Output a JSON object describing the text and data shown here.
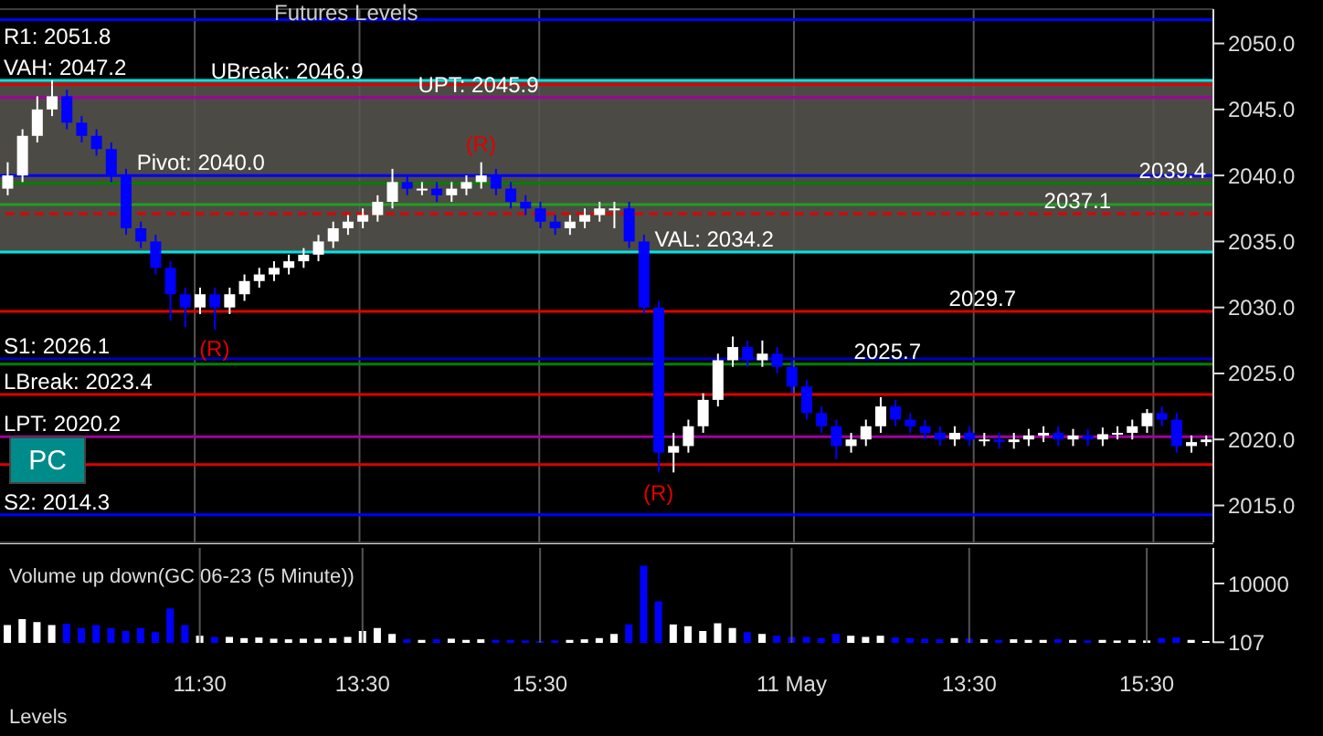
{
  "chart_data": [
    {
      "type": "candlestick",
      "title": "Futures Levels",
      "ohlc": [
        [
          2039,
          2041,
          2038.5,
          2040
        ],
        [
          2040,
          2043.5,
          2039.5,
          2043
        ],
        [
          2043,
          2046,
          2042.5,
          2045
        ],
        [
          2045,
          2047.2,
          2044.5,
          2046
        ],
        [
          2046,
          2046.5,
          2043.5,
          2044
        ],
        [
          2044,
          2044.5,
          2042.5,
          2043
        ],
        [
          2043,
          2043.5,
          2041.5,
          2042
        ],
        [
          2042,
          2042.5,
          2039.5,
          2040
        ],
        [
          2040,
          2040.5,
          2035.5,
          2036
        ],
        [
          2036,
          2036.5,
          2034.5,
          2035
        ],
        [
          2035,
          2035.5,
          2032.5,
          2033
        ],
        [
          2033,
          2033.5,
          2029,
          2031
        ],
        [
          2031,
          2031.5,
          2028.5,
          2030
        ],
        [
          2030,
          2031.5,
          2029.5,
          2031
        ],
        [
          2031,
          2031.5,
          2028.3,
          2030
        ],
        [
          2030,
          2031.5,
          2029.5,
          2031
        ],
        [
          2031,
          2032.5,
          2030.5,
          2032
        ],
        [
          2032,
          2033,
          2031.5,
          2032.5
        ],
        [
          2032.5,
          2033.5,
          2032,
          2033
        ],
        [
          2033,
          2034,
          2032.5,
          2033.5
        ],
        [
          2033.5,
          2034.5,
          2033,
          2034
        ],
        [
          2034,
          2035.5,
          2033.5,
          2035
        ],
        [
          2035,
          2036.5,
          2034.5,
          2036
        ],
        [
          2036,
          2037,
          2035.5,
          2036.5
        ],
        [
          2036.5,
          2037.5,
          2036,
          2037
        ],
        [
          2037,
          2038.5,
          2036.5,
          2038
        ],
        [
          2038,
          2040.5,
          2037.5,
          2039.5
        ],
        [
          2039.5,
          2040,
          2038.5,
          2039
        ],
        [
          2039,
          2039.5,
          2038.5,
          2039
        ],
        [
          2039,
          2039.5,
          2038,
          2038.5
        ],
        [
          2038.5,
          2039.5,
          2038,
          2039
        ],
        [
          2039,
          2040,
          2038.5,
          2039.5
        ],
        [
          2039.5,
          2041,
          2039,
          2040
        ],
        [
          2040,
          2040.5,
          2038.5,
          2039
        ],
        [
          2039,
          2039.5,
          2037.5,
          2038
        ],
        [
          2038,
          2038.5,
          2037,
          2037.5
        ],
        [
          2037.5,
          2038,
          2036,
          2036.5
        ],
        [
          2036.5,
          2037,
          2035.5,
          2036
        ],
        [
          2036,
          2037,
          2035.5,
          2036.5
        ],
        [
          2036.5,
          2037.5,
          2036,
          2037
        ],
        [
          2037,
          2038,
          2036.5,
          2037.5
        ],
        [
          2037.5,
          2038,
          2036,
          2037.5
        ],
        [
          2037.5,
          2038,
          2034.5,
          2035
        ],
        [
          2035,
          2035.5,
          2029.5,
          2030
        ],
        [
          2030,
          2030.5,
          2017.5,
          2019
        ],
        [
          2019,
          2020.5,
          2017.5,
          2019.5
        ],
        [
          2019.5,
          2021.5,
          2019,
          2021
        ],
        [
          2021,
          2023.5,
          2020.5,
          2023
        ],
        [
          2023,
          2026.5,
          2022.5,
          2026
        ],
        [
          2026,
          2027.8,
          2025.5,
          2027
        ],
        [
          2027,
          2027.5,
          2025.5,
          2026
        ],
        [
          2026,
          2027.5,
          2025.5,
          2026.5
        ],
        [
          2026.5,
          2027,
          2025,
          2025.5
        ],
        [
          2025.5,
          2026,
          2023.5,
          2024
        ],
        [
          2024,
          2024.5,
          2021.5,
          2022
        ],
        [
          2022,
          2022.5,
          2020.5,
          2021
        ],
        [
          2021,
          2021.5,
          2018.5,
          2019.5
        ],
        [
          2019.5,
          2020.5,
          2019,
          2020
        ],
        [
          2020,
          2021.5,
          2019.5,
          2021
        ],
        [
          2021,
          2023.2,
          2020.5,
          2022.5
        ],
        [
          2022.5,
          2023,
          2021,
          2021.5
        ],
        [
          2021.5,
          2022,
          2020.5,
          2021
        ],
        [
          2021,
          2021.5,
          2020,
          2020.5
        ],
        [
          2020.5,
          2021,
          2019.5,
          2020
        ],
        [
          2020,
          2021,
          2019.5,
          2020.5
        ],
        [
          2020.5,
          2021,
          2019.5,
          2020
        ],
        [
          2020,
          2020.5,
          2019.5,
          2020
        ],
        [
          2020,
          2020.5,
          2019.3,
          2019.8
        ],
        [
          2019.8,
          2020.5,
          2019.3,
          2020
        ],
        [
          2020,
          2020.8,
          2019.5,
          2020.3
        ],
        [
          2020.3,
          2021,
          2019.8,
          2020.5
        ],
        [
          2020.5,
          2021,
          2019.5,
          2020
        ],
        [
          2020,
          2020.8,
          2019.5,
          2020.3
        ],
        [
          2020.3,
          2020.8,
          2019.5,
          2020
        ],
        [
          2020,
          2020.9,
          2019.5,
          2020.4
        ],
        [
          2020.4,
          2021,
          2020,
          2020.5
        ],
        [
          2020.5,
          2021.5,
          2020,
          2021
        ],
        [
          2021,
          2022.3,
          2020.5,
          2022
        ],
        [
          2022,
          2022.5,
          2021,
          2021.5
        ],
        [
          2021.5,
          2022,
          2019,
          2019.5
        ],
        [
          2019.5,
          2020.3,
          2019,
          2019.8
        ],
        [
          2019.8,
          2020.3,
          2019.5,
          2020
        ]
      ],
      "colors": [
        "#ffffff",
        "#ffffff",
        "#ffffff",
        "#ffffff",
        "#0000ff",
        "#0000ff",
        "#0000ff",
        "#0000ff",
        "#0000ff",
        "#0000ff",
        "#0000ff",
        "#0000ff",
        "#0000ff",
        "#ffffff",
        "#0000ff",
        "#ffffff",
        "#ffffff",
        "#ffffff",
        "#ffffff",
        "#ffffff",
        "#ffffff",
        "#ffffff",
        "#ffffff",
        "#ffffff",
        "#ffffff",
        "#ffffff",
        "#ffffff",
        "#0000ff",
        "#ffffff",
        "#0000ff",
        "#ffffff",
        "#ffffff",
        "#ffffff",
        "#0000ff",
        "#0000ff",
        "#0000ff",
        "#0000ff",
        "#0000ff",
        "#ffffff",
        "#ffffff",
        "#ffffff",
        "#ffffff",
        "#0000ff",
        "#0000ff",
        "#0000ff",
        "#ffffff",
        "#ffffff",
        "#ffffff",
        "#ffffff",
        "#ffffff",
        "#0000ff",
        "#ffffff",
        "#0000ff",
        "#0000ff",
        "#0000ff",
        "#0000ff",
        "#0000ff",
        "#ffffff",
        "#ffffff",
        "#ffffff",
        "#0000ff",
        "#0000ff",
        "#0000ff",
        "#0000ff",
        "#ffffff",
        "#0000ff",
        "#ffffff",
        "#0000ff",
        "#ffffff",
        "#ffffff",
        "#ffffff",
        "#0000ff",
        "#ffffff",
        "#0000ff",
        "#ffffff",
        "#ffffff",
        "#ffffff",
        "#ffffff",
        "#0000ff",
        "#0000ff",
        "#ffffff",
        "#ffffff"
      ],
      "ylim": [
        2012.2,
        2052.6
      ],
      "yticks": [
        {
          "value": 2015,
          "label": "2015.0"
        },
        {
          "value": 2020,
          "label": "2020.0"
        },
        {
          "value": 2025,
          "label": "2025.0"
        },
        {
          "value": 2030,
          "label": "2030.0"
        },
        {
          "value": 2035,
          "label": "2035.0"
        },
        {
          "value": 2040,
          "label": "2040.0"
        },
        {
          "value": 2045,
          "label": "2045.0"
        },
        {
          "value": 2050,
          "label": "2050.0"
        }
      ],
      "grid": true,
      "tick_labels": "y",
      "bands": [
        {
          "axis": "y",
          "from": 2034.2,
          "to": 2047.2,
          "color": "#4c4a44"
        }
      ],
      "ref_lines": [
        {
          "axis": "y",
          "value": 2051.8,
          "label": "R1: 2051.8",
          "color": "#0000ff"
        },
        {
          "axis": "y",
          "value": 2047.2,
          "label": "VAH: 2047.2",
          "color": "#00e5e5"
        },
        {
          "axis": "y",
          "value": 2046.9,
          "label": "UBreak: 2046.9",
          "color": "#e00000"
        },
        {
          "axis": "y",
          "value": 2045.9,
          "label": "UPT: 2045.9",
          "color": "#a000a0"
        },
        {
          "axis": "y",
          "value": 2040.0,
          "label": "Pivot: 2040.0",
          "color": "#0000ff"
        },
        {
          "axis": "y",
          "value": 2039.4,
          "label": "2039.4",
          "color": "#008000"
        },
        {
          "axis": "y",
          "value": 2037.8,
          "color": "#20a020"
        },
        {
          "axis": "y",
          "value": 2037.1,
          "label": "2037.1",
          "color": "#e00000",
          "line_style": "dashed"
        },
        {
          "axis": "y",
          "value": 2034.2,
          "label": "VAL: 2034.2",
          "color": "#00e5e5"
        },
        {
          "axis": "y",
          "value": 2029.7,
          "label": "2029.7",
          "color": "#e00000"
        },
        {
          "axis": "y",
          "value": 2026.1,
          "label": "S1: 2026.1",
          "color": "#0000c0"
        },
        {
          "axis": "y",
          "value": 2025.7,
          "label": "2025.7",
          "color": "#008000"
        },
        {
          "axis": "y",
          "value": 2023.4,
          "label": "LBreak: 2023.4",
          "color": "#e00000"
        },
        {
          "axis": "y",
          "value": 2020.2,
          "label": "LPT: 2020.2",
          "color": "#a000a0"
        },
        {
          "axis": "y",
          "value": 2018.1,
          "color": "#e00000"
        },
        {
          "axis": "y",
          "value": 2014.3,
          "label": "S2: 2014.3",
          "color": "#0000ff"
        }
      ],
      "annotations": [
        "(R)",
        "(R)",
        "(R)",
        "PC"
      ]
    },
    {
      "type": "bar",
      "title": "Volume up down(GC 06-23 (5 Minute))",
      "categories": [
        null,
        null,
        null,
        null,
        null,
        null,
        null,
        null,
        null,
        null,
        null,
        null,
        null,
        "11:30",
        null,
        null,
        null,
        null,
        null,
        null,
        null,
        null,
        null,
        null,
        "13:30",
        null,
        null,
        null,
        null,
        null,
        null,
        null,
        null,
        null,
        null,
        null,
        "15:30",
        null,
        null,
        null,
        null,
        null,
        null,
        null,
        null,
        null,
        null,
        null,
        null,
        null,
        null,
        null,
        null,
        "11 May",
        null,
        null,
        null,
        null,
        null,
        null,
        null,
        null,
        null,
        null,
        null,
        "13:30",
        null,
        null,
        null,
        null,
        null,
        null,
        null,
        null,
        null,
        null,
        null,
        "15:30",
        null,
        null,
        null,
        null
      ],
      "values": [
        3000,
        4000,
        3500,
        3000,
        3200,
        2500,
        3000,
        2500,
        2000,
        2500,
        1800,
        5800,
        3000,
        1200,
        1000,
        1000,
        800,
        900,
        700,
        600,
        700,
        700,
        800,
        1000,
        2000,
        2500,
        1500,
        600,
        500,
        600,
        700,
        500,
        600,
        500,
        500,
        400,
        300,
        400,
        500,
        600,
        800,
        1500,
        3100,
        13000,
        7000,
        3100,
        2800,
        2000,
        3300,
        2500,
        1800,
        1500,
        1200,
        1000,
        1000,
        800,
        1500,
        1200,
        1000,
        1200,
        900,
        800,
        700,
        600,
        800,
        700,
        600,
        500,
        600,
        500,
        500,
        600,
        500,
        400,
        500,
        400,
        500,
        400,
        800,
        900,
        500,
        300
      ],
      "colors": [
        "#ffffff",
        "#ffffff",
        "#ffffff",
        "#ffffff",
        "#0000ff",
        "#0000ff",
        "#0000ff",
        "#0000ff",
        "#0000ff",
        "#0000ff",
        "#0000ff",
        "#0000ff",
        "#0000ff",
        "#ffffff",
        "#0000ff",
        "#ffffff",
        "#ffffff",
        "#ffffff",
        "#ffffff",
        "#ffffff",
        "#ffffff",
        "#ffffff",
        "#ffffff",
        "#ffffff",
        "#ffffff",
        "#ffffff",
        "#ffffff",
        "#0000ff",
        "#ffffff",
        "#0000ff",
        "#ffffff",
        "#ffffff",
        "#ffffff",
        "#0000ff",
        "#0000ff",
        "#0000ff",
        "#0000ff",
        "#0000ff",
        "#ffffff",
        "#ffffff",
        "#ffffff",
        "#ffffff",
        "#0000ff",
        "#0000ff",
        "#0000ff",
        "#ffffff",
        "#ffffff",
        "#ffffff",
        "#ffffff",
        "#ffffff",
        "#0000ff",
        "#ffffff",
        "#0000ff",
        "#0000ff",
        "#0000ff",
        "#0000ff",
        "#0000ff",
        "#ffffff",
        "#ffffff",
        "#ffffff",
        "#0000ff",
        "#0000ff",
        "#0000ff",
        "#0000ff",
        "#ffffff",
        "#0000ff",
        "#ffffff",
        "#0000ff",
        "#ffffff",
        "#ffffff",
        "#ffffff",
        "#0000ff",
        "#ffffff",
        "#0000ff",
        "#ffffff",
        "#ffffff",
        "#ffffff",
        "#ffffff",
        "#0000ff",
        "#0000ff",
        "#ffffff",
        "#ffffff"
      ],
      "ylim": [
        0,
        16000
      ],
      "yticks": [
        {
          "value": 107,
          "label": "107"
        },
        10000
      ],
      "grid": "x",
      "annotations": [
        "Levels"
      ]
    }
  ]
}
